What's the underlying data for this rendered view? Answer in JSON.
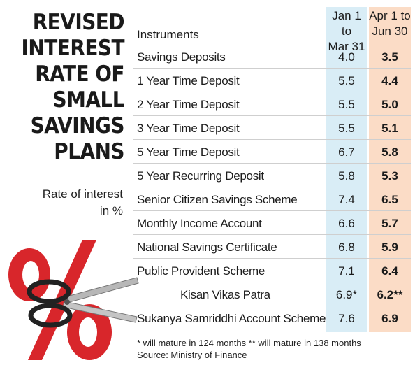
{
  "title": [
    "REVISED",
    "INTEREST",
    "RATE OF",
    "SMALL",
    "SAVINGS",
    "PLANS"
  ],
  "subtitle": [
    "Rate of interest",
    "in %"
  ],
  "columns": {
    "instruments": "Instruments",
    "jan": [
      "Jan 1 to",
      "Mar 31"
    ],
    "apr": [
      "Apr 1 to",
      "Jun 30"
    ]
  },
  "rows": [
    {
      "name": "Savings Deposits",
      "jan": "4.0",
      "apr": "3.5"
    },
    {
      "name": "1 Year Time Deposit",
      "jan": "5.5",
      "apr": "4.4"
    },
    {
      "name": "2 Year Time Deposit",
      "jan": "5.5",
      "apr": "5.0"
    },
    {
      "name": "3 Year Time Deposit",
      "jan": "5.5",
      "apr": "5.1"
    },
    {
      "name": "5 Year Time Deposit",
      "jan": "6.7",
      "apr": "5.8"
    },
    {
      "name": "5 Year Recurring Deposit",
      "jan": "5.8",
      "apr": "5.3"
    },
    {
      "name": "Senior Citizen Savings Scheme",
      "jan": "7.4",
      "apr": "6.5"
    },
    {
      "name": "Monthly Income Account",
      "jan": "6.6",
      "apr": "5.7"
    },
    {
      "name": "National Savings Certificate",
      "jan": "6.8",
      "apr": "5.9"
    },
    {
      "name": "Public Provident Scheme",
      "jan": "7.1",
      "apr": "6.4"
    },
    {
      "name": "Kisan Vikas Patra",
      "jan": "6.9*",
      "apr": "6.2**"
    },
    {
      "name": "Sukanya Samriddhi Account Scheme",
      "jan": "7.6",
      "apr": "6.9"
    }
  ],
  "footnote": "* will mature in 124 months ** will mature in 138 months",
  "source": "Source: Ministry of Finance",
  "colors": {
    "jan_col": "#d9edf6",
    "apr_col": "#fbdcc6",
    "percent_red": "#d8262b"
  },
  "icons": [
    "percent-icon",
    "scissors-icon"
  ]
}
